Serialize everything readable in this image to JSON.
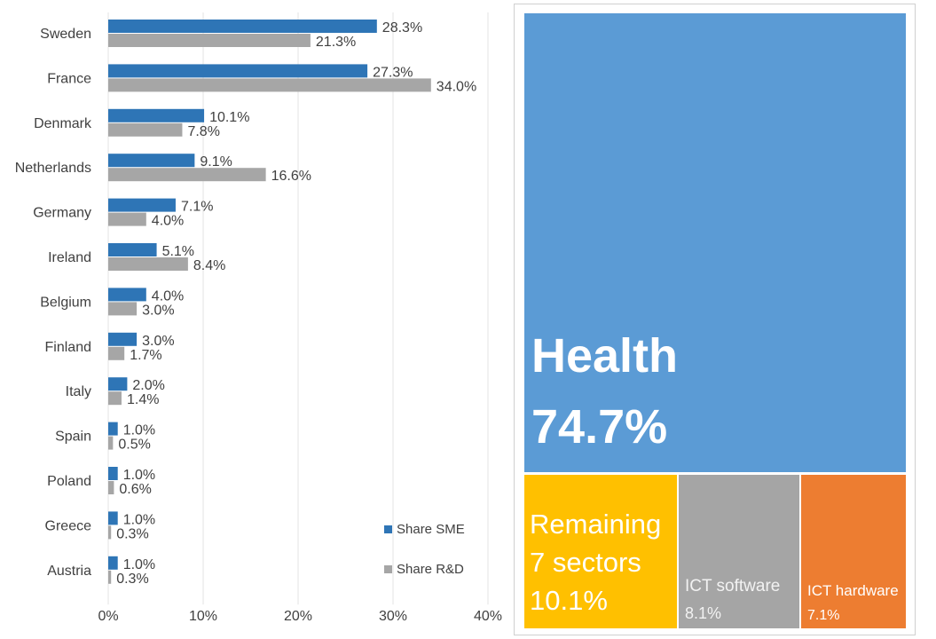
{
  "chart_data": [
    {
      "type": "bar",
      "orientation": "horizontal",
      "categories": [
        "Sweden",
        "France",
        "Denmark",
        "Netherlands",
        "Germany",
        "Ireland",
        "Belgium",
        "Finland",
        "Italy",
        "Spain",
        "Poland",
        "Greece",
        "Austria"
      ],
      "series": [
        {
          "name": "Share SME",
          "color": "#2e75b6",
          "values": [
            28.3,
            27.3,
            10.1,
            9.1,
            7.1,
            5.1,
            4.0,
            3.0,
            2.0,
            1.0,
            1.0,
            1.0,
            1.0
          ],
          "labels": [
            "28.3%",
            "27.3%",
            "10.1%",
            "9.1%",
            "7.1%",
            "5.1%",
            "4.0%",
            "3.0%",
            "2.0%",
            "1.0%",
            "1.0%",
            "1.0%",
            "1.0%"
          ]
        },
        {
          "name": "Share R&D",
          "color": "#a6a6a6",
          "values": [
            21.3,
            34.0,
            7.8,
            16.6,
            4.0,
            8.4,
            3.0,
            1.7,
            1.4,
            0.5,
            0.6,
            0.3,
            0.3
          ],
          "labels": [
            "21.3%",
            "34.0%",
            "7.8%",
            "16.6%",
            "4.0%",
            "8.4%",
            "3.0%",
            "1.7%",
            "1.4%",
            "0.5%",
            "0.6%",
            "0.3%",
            "0.3%"
          ]
        }
      ],
      "xlim": [
        0,
        40
      ],
      "xticks": [
        0,
        10,
        20,
        30,
        40
      ],
      "xtick_labels": [
        "0%",
        "10%",
        "20%",
        "30%",
        "40%"
      ],
      "grid": "vertical",
      "legend_position": "bottom-right"
    },
    {
      "type": "treemap",
      "items": [
        {
          "name": "Health",
          "value": 74.7,
          "label": "74.7%",
          "color": "#5b9bd5"
        },
        {
          "name": "Remaining 7 sectors",
          "value": 10.1,
          "label": "10.1%",
          "color": "#ffc000"
        },
        {
          "name": "ICT software",
          "value": 8.1,
          "label": "8.1%",
          "color": "#a5a5a5"
        },
        {
          "name": "ICT hardware",
          "value": 7.1,
          "label": "7.1%",
          "color": "#ed7d31"
        }
      ]
    }
  ]
}
